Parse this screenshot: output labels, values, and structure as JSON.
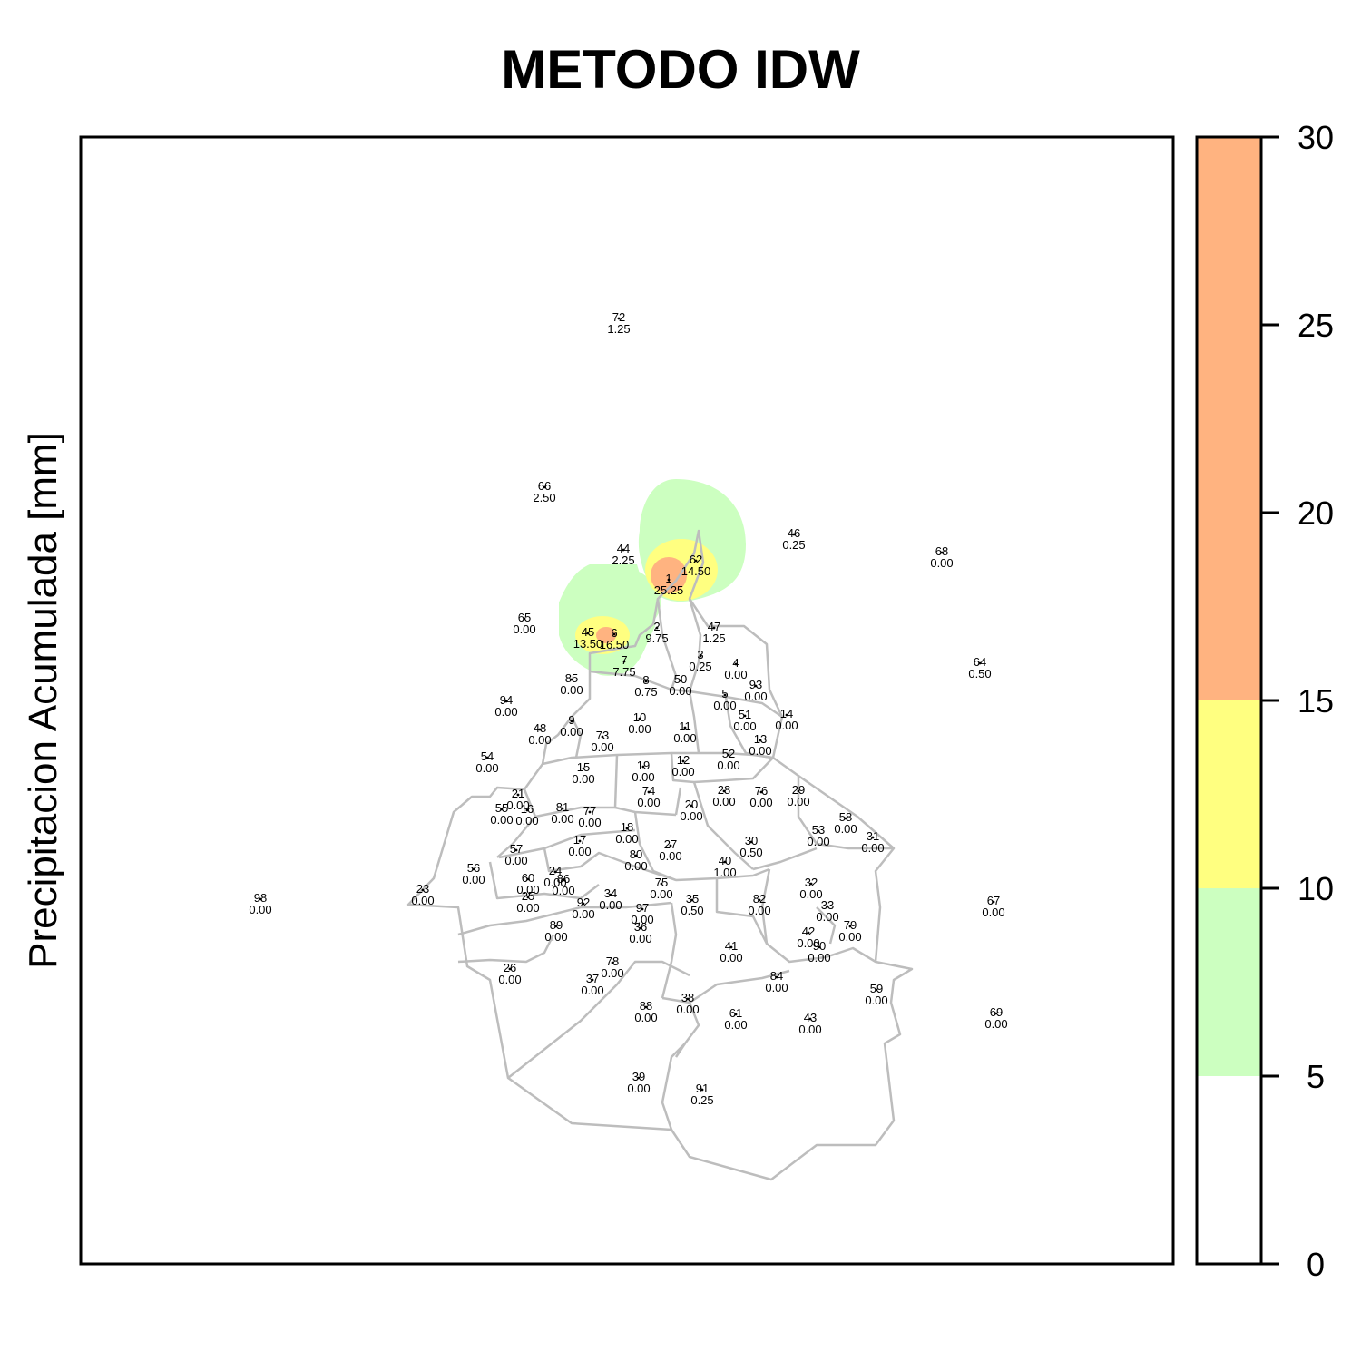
{
  "title": "METODO IDW",
  "ylabel": "Precipitacion Acumulada [mm]",
  "legend": {
    "ticks": [
      "0",
      "5",
      "10",
      "15",
      "20",
      "25",
      "30"
    ],
    "bands": [
      {
        "from": 0,
        "to": 5,
        "color": "#ffffff"
      },
      {
        "from": 5,
        "to": 10,
        "color": "#ccffc0"
      },
      {
        "from": 10,
        "to": 15,
        "color": "#ffff80"
      },
      {
        "from": 15,
        "to": 30,
        "color": "#ffb380"
      }
    ]
  },
  "stations": [
    {
      "id": "72",
      "value": "1.25"
    },
    {
      "id": "66",
      "value": "2.50"
    },
    {
      "id": "44",
      "value": "2.25"
    },
    {
      "id": "46",
      "value": "0.25"
    },
    {
      "id": "68",
      "value": "0.00"
    },
    {
      "id": "62",
      "value": "14.50"
    },
    {
      "id": "1",
      "value": "25.25"
    },
    {
      "id": "65",
      "value": "0.00"
    },
    {
      "id": "45",
      "value": "13.50"
    },
    {
      "id": "6",
      "value": "16.50"
    },
    {
      "id": "2",
      "value": "9.75"
    },
    {
      "id": "47",
      "value": "1.25"
    },
    {
      "id": "64",
      "value": "0.50"
    },
    {
      "id": "7",
      "value": "7.75"
    },
    {
      "id": "3",
      "value": "0.25"
    },
    {
      "id": "4",
      "value": "0.00"
    },
    {
      "id": "85",
      "value": "0.00"
    },
    {
      "id": "8",
      "value": "0.75"
    },
    {
      "id": "50",
      "value": "0.00"
    },
    {
      "id": "93",
      "value": "0.00"
    },
    {
      "id": "5",
      "value": "0.00"
    },
    {
      "id": "94",
      "value": "0.00"
    },
    {
      "id": "14",
      "value": "0.00"
    },
    {
      "id": "51",
      "value": "0.00"
    },
    {
      "id": "9",
      "value": "0.00"
    },
    {
      "id": "10",
      "value": "0.00"
    },
    {
      "id": "48",
      "value": "0.00"
    },
    {
      "id": "11",
      "value": "0.00"
    },
    {
      "id": "73",
      "value": "0.00"
    },
    {
      "id": "13",
      "value": "0.00"
    },
    {
      "id": "54",
      "value": "0.00"
    },
    {
      "id": "52",
      "value": "0.00"
    },
    {
      "id": "12",
      "value": "0.00"
    },
    {
      "id": "15",
      "value": "0.00"
    },
    {
      "id": "19",
      "value": "0.00"
    },
    {
      "id": "28",
      "value": "0.00"
    },
    {
      "id": "29",
      "value": "0.00"
    },
    {
      "id": "74",
      "value": "0.00"
    },
    {
      "id": "76",
      "value": "0.00"
    },
    {
      "id": "21",
      "value": "0.00"
    },
    {
      "id": "55",
      "value": "0.00"
    },
    {
      "id": "16",
      "value": "0.00"
    },
    {
      "id": "81",
      "value": "0.00"
    },
    {
      "id": "77",
      "value": "0.00"
    },
    {
      "id": "20",
      "value": "0.00"
    },
    {
      "id": "58",
      "value": "0.00"
    },
    {
      "id": "53",
      "value": "0.00"
    },
    {
      "id": "18",
      "value": "0.00"
    },
    {
      "id": "31",
      "value": "0.00"
    },
    {
      "id": "17",
      "value": "0.00"
    },
    {
      "id": "30",
      "value": "0.50"
    },
    {
      "id": "57",
      "value": "0.00"
    },
    {
      "id": "27",
      "value": "0.00"
    },
    {
      "id": "80",
      "value": "0.00"
    },
    {
      "id": "40",
      "value": "1.00"
    },
    {
      "id": "56",
      "value": "0.00"
    },
    {
      "id": "24",
      "value": "0.00"
    },
    {
      "id": "60",
      "value": "0.00"
    },
    {
      "id": "86",
      "value": "0.00"
    },
    {
      "id": "32",
      "value": "0.00"
    },
    {
      "id": "75",
      "value": "0.00"
    },
    {
      "id": "23",
      "value": "0.00"
    },
    {
      "id": "34",
      "value": "0.00"
    },
    {
      "id": "98",
      "value": "0.00"
    },
    {
      "id": "25",
      "value": "0.00"
    },
    {
      "id": "35",
      "value": "0.50"
    },
    {
      "id": "82",
      "value": "0.00"
    },
    {
      "id": "33",
      "value": "0.00"
    },
    {
      "id": "67",
      "value": "0.00"
    },
    {
      "id": "92",
      "value": "0.00"
    },
    {
      "id": "97",
      "value": "0.00"
    },
    {
      "id": "89",
      "value": "0.00"
    },
    {
      "id": "79",
      "value": "0.00"
    },
    {
      "id": "36",
      "value": "0.00"
    },
    {
      "id": "42",
      "value": "0.00"
    },
    {
      "id": "41",
      "value": "0.00"
    },
    {
      "id": "90",
      "value": "0.00"
    },
    {
      "id": "26",
      "value": "0.00"
    },
    {
      "id": "78",
      "value": "0.00"
    },
    {
      "id": "37",
      "value": "0.00"
    },
    {
      "id": "84",
      "value": "0.00"
    },
    {
      "id": "59",
      "value": "0.00"
    },
    {
      "id": "38",
      "value": "0.00"
    },
    {
      "id": "88",
      "value": "0.00"
    },
    {
      "id": "61",
      "value": "0.00"
    },
    {
      "id": "43",
      "value": "0.00"
    },
    {
      "id": "69",
      "value": "0.00"
    },
    {
      "id": "39",
      "value": "0.00"
    },
    {
      "id": "91",
      "value": "0.25"
    }
  ]
}
